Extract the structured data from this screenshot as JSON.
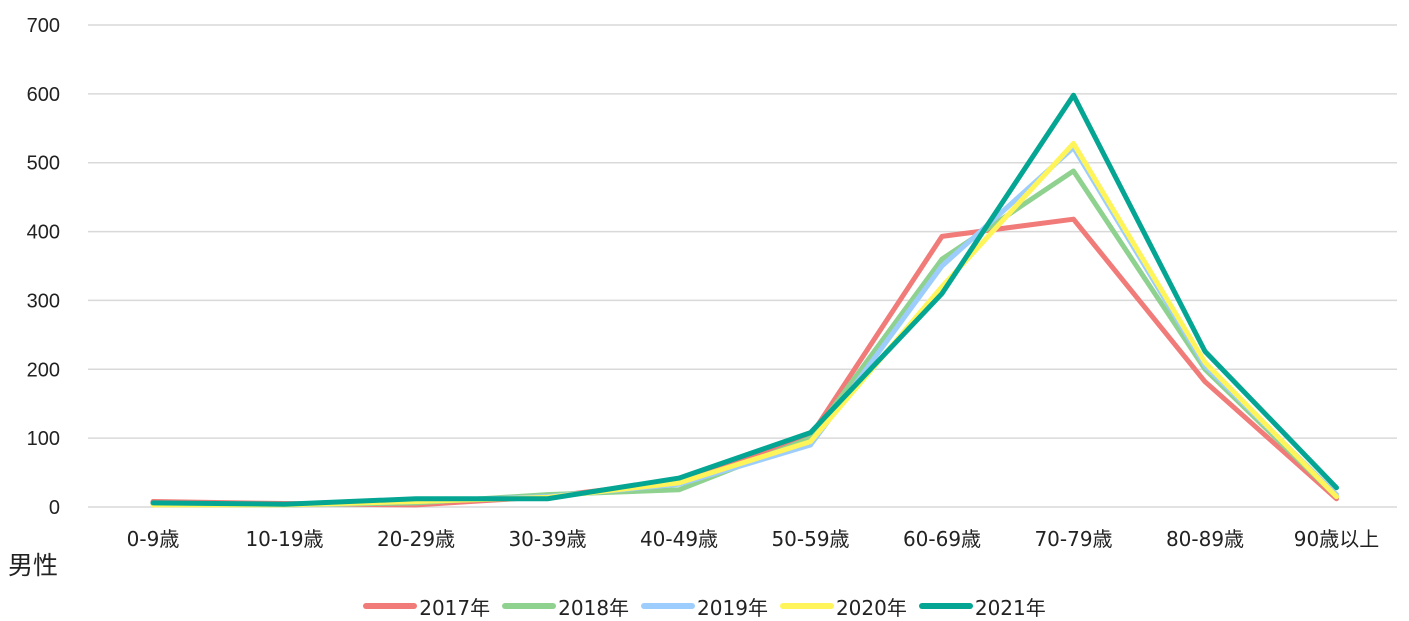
{
  "section_label": "男性",
  "chart_data": {
    "type": "line",
    "categories": [
      "0-9歳",
      "10-19歳",
      "20-29歳",
      "30-39歳",
      "40-49歳",
      "50-59歳",
      "60-69歳",
      "70-79歳",
      "80-89歳",
      "90歳以上"
    ],
    "ylim": [
      0,
      700
    ],
    "yticks": [
      0,
      100,
      200,
      300,
      400,
      500,
      600,
      700
    ],
    "grid": true,
    "legend_position": "bottom",
    "series": [
      {
        "name": "2017年",
        "color": "#f07b78",
        "values": [
          8,
          5,
          3,
          15,
          38,
          103,
          393,
          418,
          182,
          12
        ]
      },
      {
        "name": "2018年",
        "color": "#8fd18f",
        "values": [
          5,
          3,
          6,
          18,
          25,
          100,
          360,
          488,
          200,
          15
        ]
      },
      {
        "name": "2019年",
        "color": "#9dcdfc",
        "values": [
          4,
          3,
          8,
          15,
          33,
          90,
          350,
          522,
          205,
          18
        ]
      },
      {
        "name": "2020年",
        "color": "#fff45a",
        "values": [
          3,
          3,
          8,
          14,
          35,
          95,
          320,
          528,
          210,
          15
        ]
      },
      {
        "name": "2021年",
        "color": "#04a592",
        "values": [
          6,
          4,
          12,
          12,
          42,
          108,
          310,
          598,
          226,
          28
        ]
      }
    ]
  }
}
